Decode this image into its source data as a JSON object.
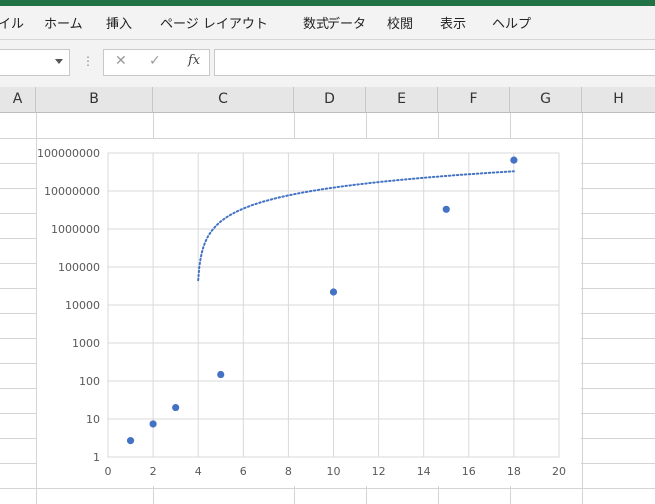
{
  "ribbon": {
    "tabs": [
      "イル",
      "ホーム",
      "挿入",
      "ページ レイアウト",
      "数式",
      "データ",
      "校閲",
      "表示",
      "ヘルプ"
    ]
  },
  "formula_bar": {
    "namebox_value": "",
    "cancel_icon": "cancel-icon",
    "enter_icon": "check-icon",
    "fx_label": "fx",
    "formula_value": ""
  },
  "columns": [
    "A",
    "B",
    "C",
    "D",
    "E",
    "F",
    "G",
    "H"
  ],
  "chart_data": {
    "type": "scatter",
    "y_scale": "log",
    "xlim": [
      0,
      20
    ],
    "ylim": [
      1,
      100000000
    ],
    "x_ticks": [
      "0",
      "2",
      "4",
      "6",
      "8",
      "10",
      "12",
      "14",
      "16",
      "18",
      "20"
    ],
    "y_ticks": [
      "1",
      "10",
      "100",
      "1000",
      "10000",
      "100000",
      "1000000",
      "10000000",
      "100000000"
    ],
    "grid": true,
    "series": [
      {
        "x": [
          1,
          2,
          3,
          5,
          10,
          15,
          18
        ],
        "y": [
          2.7,
          7.4,
          20,
          148,
          22000,
          3300000,
          65000000
        ],
        "color": "#4472c4"
      }
    ],
    "trendline": {
      "type": "logarithmic",
      "style": "dotted",
      "color": "#4472c4",
      "x_start": 4,
      "x_end": 18
    }
  }
}
